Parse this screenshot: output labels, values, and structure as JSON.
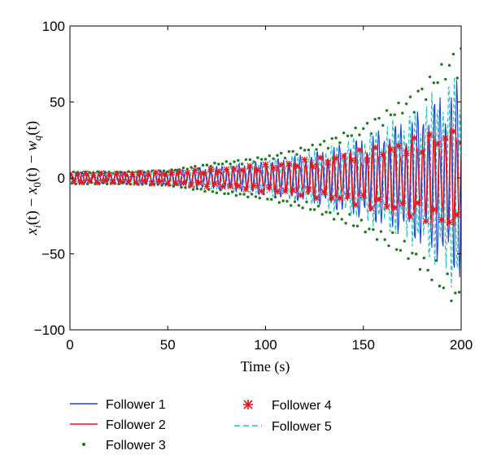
{
  "chart_data": {
    "type": "line",
    "xlabel": "Time (s)",
    "ylabel": "x_i(t) − x_0(t) − w_q(t)",
    "ylabel_parts": {
      "x": "x",
      "i": "i",
      "t1": "(t) − ",
      "x0": "x",
      "zero": "0",
      "t2": "(t) − ",
      "w": "w",
      "q": "q",
      "t3": "(t)"
    },
    "xlim": [
      0,
      200
    ],
    "ylim": [
      -100,
      100
    ],
    "xticks": [
      "0",
      "50",
      "100",
      "150",
      "200"
    ],
    "yticks": [
      "100",
      "50",
      "0",
      "−50",
      "−100"
    ],
    "grid": false,
    "legend_position": "bottom",
    "series": [
      {
        "name": "Follower 1",
        "color": "#1f3fd6",
        "style": "solid line",
        "x": [
          0,
          25,
          50,
          75,
          100,
          125,
          150,
          175,
          200
        ],
        "upper": [
          4,
          4,
          5,
          8,
          12,
          18,
          28,
          42,
          68
        ],
        "lower": [
          -4,
          -4,
          -5,
          -8,
          -12,
          -18,
          -28,
          -42,
          -70
        ]
      },
      {
        "name": "Follower 2",
        "color": "#e8141a",
        "style": "solid line",
        "x": [
          0,
          25,
          50,
          75,
          100,
          125,
          150,
          175,
          200
        ],
        "upper": [
          3,
          3,
          4,
          6,
          9,
          13,
          19,
          27,
          36
        ],
        "lower": [
          -3,
          -3,
          -4,
          -6,
          -9,
          -13,
          -19,
          -27,
          -37
        ]
      },
      {
        "name": "Follower 3",
        "color": "#1a7a1a",
        "style": "dots",
        "x": [
          0,
          25,
          50,
          75,
          100,
          125,
          150,
          175,
          200
        ],
        "upper": [
          4,
          4,
          5,
          10,
          14,
          22,
          35,
          55,
          88
        ],
        "lower": [
          -4,
          -4,
          -5,
          -10,
          -14,
          -22,
          -35,
          -55,
          -88
        ]
      },
      {
        "name": "Follower 4",
        "color": "#e8141a",
        "style": "asterisk markers",
        "x": [
          0,
          25,
          50,
          75,
          100,
          125,
          150,
          175,
          200
        ],
        "upper": [
          3,
          3,
          4,
          6,
          9,
          13,
          19,
          26,
          36
        ],
        "lower": [
          -3,
          -3,
          -4,
          -6,
          -9,
          -13,
          -19,
          -26,
          -37
        ]
      },
      {
        "name": "Follower 5",
        "color": "#1fc4c4",
        "style": "dashed line",
        "x": [
          0,
          25,
          50,
          75,
          100,
          125,
          150,
          175,
          200
        ],
        "upper": [
          4,
          4,
          5,
          8,
          12,
          19,
          30,
          46,
          75
        ],
        "lower": [
          -4,
          -4,
          -5,
          -8,
          -12,
          -19,
          -30,
          -46,
          -80
        ]
      }
    ]
  }
}
